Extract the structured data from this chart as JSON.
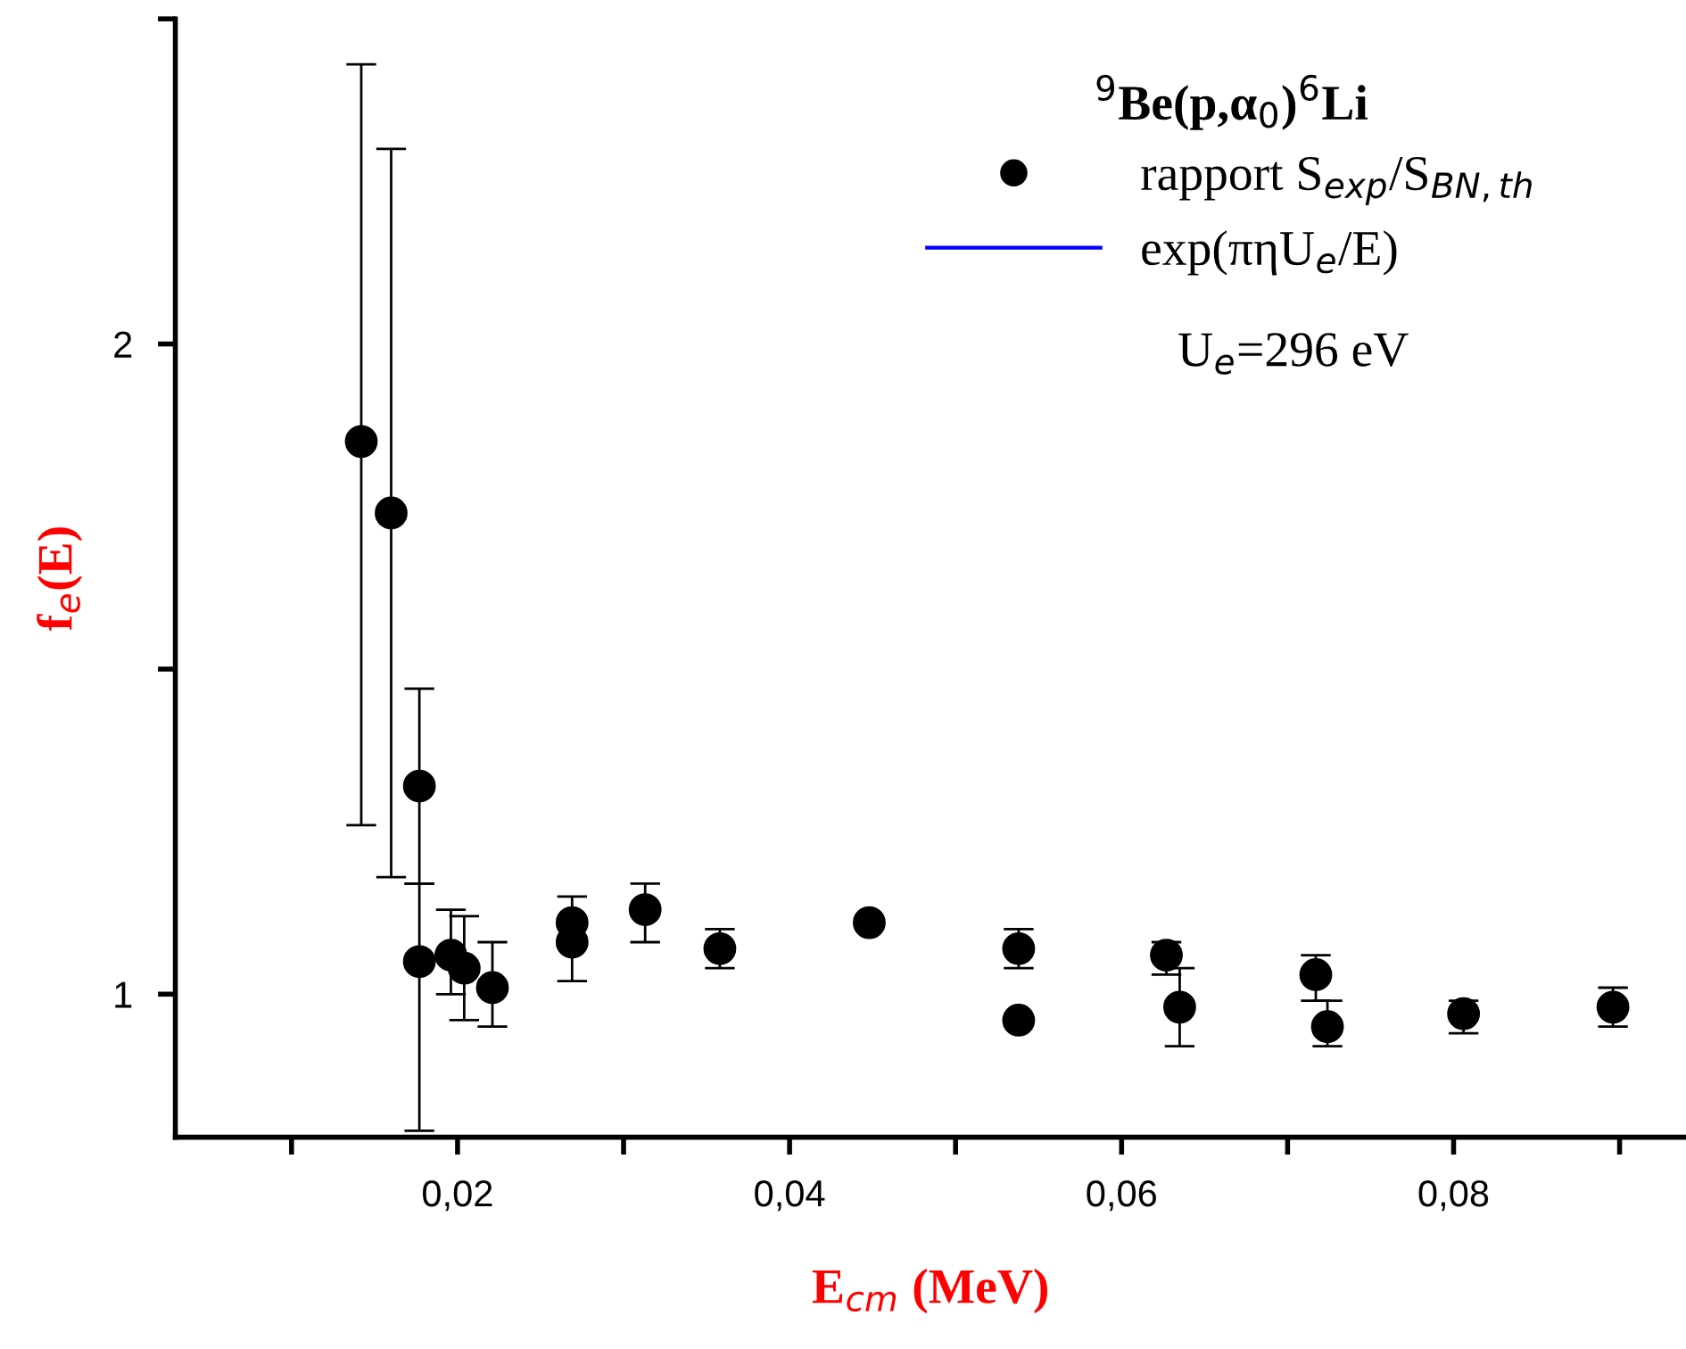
{
  "chart_data": {
    "type": "scatter",
    "xlabel": "E$_{cm}$ (MeV)",
    "ylabel": "f$_{e}$(E)",
    "legend_title": "$^{9}$Be(p,α$_{0}$)$^{6}$Li",
    "annotations": [
      "U$_{e}$=296 eV"
    ],
    "xlim": [
      0.003,
      0.094
    ],
    "ylim": [
      0.78,
      2.5
    ],
    "xticks": [
      {
        "value": 0.01,
        "label": null
      },
      {
        "value": 0.02,
        "label": "0,02"
      },
      {
        "value": 0.03,
        "label": null
      },
      {
        "value": 0.04,
        "label": "0,04"
      },
      {
        "value": 0.05,
        "label": null
      },
      {
        "value": 0.06,
        "label": "0,06"
      },
      {
        "value": 0.07,
        "label": null
      },
      {
        "value": 0.08,
        "label": "0,08"
      },
      {
        "value": 0.09,
        "label": null
      }
    ],
    "yticks": [
      1,
      {
        "value": 1.5,
        "label": null
      },
      2,
      {
        "value": 2.5,
        "label": null
      }
    ],
    "grid": false,
    "legend": "top right",
    "marker": "circle",
    "series": [
      {
        "name": "rapport S$_{exp}$/S$_{BN,th}$",
        "color": "#000000",
        "x": [
          0.0142,
          0.016,
          0.0177,
          0.0177,
          0.0196,
          0.0204,
          0.0221,
          0.0269,
          0.0269,
          0.0313,
          0.0358,
          0.0448,
          0.0538,
          0.0538,
          0.0627,
          0.0635,
          0.0717,
          0.0724,
          0.0806,
          0.0896
        ],
        "values": [
          1.85,
          1.74,
          1.32,
          1.05,
          1.06,
          1.04,
          1.01,
          1.11,
          1.08,
          1.13,
          1.07,
          1.11,
          1.07,
          0.96,
          1.06,
          0.98,
          1.03,
          0.95,
          0.97,
          0.98
        ],
        "errors": [
          [
            1.26,
            2.43
          ],
          [
            1.18,
            2.3
          ],
          [
            1.17,
            1.47
          ],
          [
            0.79,
            1.17
          ],
          [
            1.0,
            1.13
          ],
          [
            0.96,
            1.12
          ],
          [
            0.95,
            1.08
          ],
          [
            1.11,
            1.15
          ],
          [
            1.02,
            1.08
          ],
          [
            1.08,
            1.17
          ],
          [
            1.04,
            1.1
          ],
          null,
          [
            1.04,
            1.1
          ],
          null,
          [
            1.03,
            1.08
          ],
          [
            0.92,
            1.04
          ],
          [
            0.99,
            1.06
          ],
          [
            0.92,
            0.99
          ],
          [
            0.94,
            0.99
          ],
          [
            0.95,
            1.01
          ]
        ]
      },
      {
        "name": "exp(πηU$_{e}$/E)",
        "type": "line",
        "color": "#0000ff"
      }
    ]
  }
}
